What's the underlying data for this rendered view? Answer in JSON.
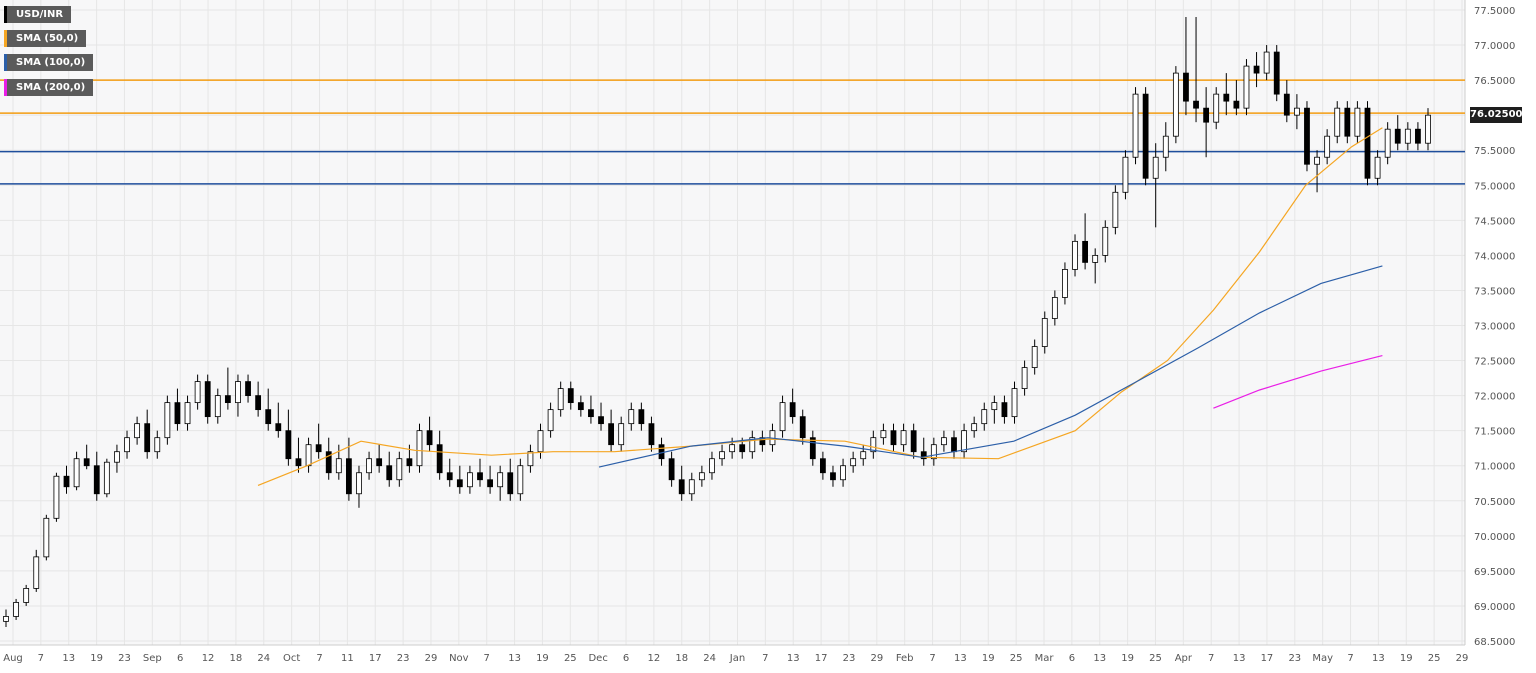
{
  "chart_data": {
    "type": "candlestick",
    "symbol": "USD/INR",
    "ylim": [
      68.5,
      77.5
    ],
    "y_ticks": [
      "77.5000",
      "77.0000",
      "76.5000",
      "76.0000",
      "75.5000",
      "75.0000",
      "74.5000",
      "74.0000",
      "73.5000",
      "73.0000",
      "72.5000",
      "72.0000",
      "71.5000",
      "71.0000",
      "70.5000",
      "70.0000",
      "69.5000",
      "69.0000",
      "68.5000"
    ],
    "x_ticks": [
      "Aug",
      "7",
      "13",
      "19",
      "23",
      "Sep",
      "6",
      "12",
      "18",
      "24",
      "Oct",
      "7",
      "11",
      "17",
      "23",
      "29",
      "Nov",
      "7",
      "13",
      "19",
      "25",
      "Dec",
      "6",
      "12",
      "18",
      "24",
      "Jan",
      "7",
      "13",
      "17",
      "23",
      "29",
      "Feb",
      "7",
      "13",
      "19",
      "25",
      "Mar",
      "6",
      "13",
      "19",
      "25",
      "Apr",
      "7",
      "13",
      "17",
      "23",
      "May",
      "7",
      "13",
      "19",
      "25",
      "29"
    ],
    "current_price_label": "76.02500",
    "current_price": 76.025,
    "horizontal_levels": [
      {
        "value": 76.5,
        "color": "#f39c12"
      },
      {
        "value": 76.03,
        "color": "#f39c12"
      },
      {
        "value": 75.48,
        "color": "#1f4e9c"
      },
      {
        "value": 75.02,
        "color": "#1f4e9c"
      }
    ],
    "legend": [
      {
        "label": "USD/INR",
        "color": "#000000"
      },
      {
        "label": "SMA (50,0)",
        "color": "#f5a623"
      },
      {
        "label": "SMA (100,0)",
        "color": "#2c5fa8"
      },
      {
        "label": "SMA (200,0)",
        "color": "#e91ee6"
      }
    ],
    "colors": {
      "up_fill": "#ffffff",
      "down_fill": "#000000",
      "candle_stroke": "#000000",
      "grid": "#e6e6e6",
      "background": "#f7f7f8"
    },
    "grid": true,
    "sma50": [
      [
        0.168,
        70.72
      ],
      [
        0.2,
        71.0
      ],
      [
        0.235,
        71.35
      ],
      [
        0.27,
        71.22
      ],
      [
        0.32,
        71.15
      ],
      [
        0.36,
        71.2
      ],
      [
        0.4,
        71.2
      ],
      [
        0.45,
        71.28
      ],
      [
        0.5,
        71.38
      ],
      [
        0.55,
        71.35
      ],
      [
        0.6,
        71.12
      ],
      [
        0.65,
        71.1
      ],
      [
        0.7,
        71.5
      ],
      [
        0.73,
        72.05
      ],
      [
        0.76,
        72.5
      ],
      [
        0.79,
        73.22
      ],
      [
        0.82,
        74.05
      ],
      [
        0.85,
        75.0
      ],
      [
        0.88,
        75.55
      ],
      [
        0.9,
        75.82
      ]
    ],
    "sma100": [
      [
        0.39,
        70.98
      ],
      [
        0.45,
        71.28
      ],
      [
        0.5,
        71.4
      ],
      [
        0.55,
        71.28
      ],
      [
        0.6,
        71.12
      ],
      [
        0.66,
        71.35
      ],
      [
        0.7,
        71.72
      ],
      [
        0.74,
        72.2
      ],
      [
        0.78,
        72.68
      ],
      [
        0.82,
        73.18
      ],
      [
        0.86,
        73.6
      ],
      [
        0.9,
        73.85
      ]
    ],
    "sma200": [
      [
        0.79,
        71.82
      ],
      [
        0.82,
        72.08
      ],
      [
        0.86,
        72.35
      ],
      [
        0.9,
        72.57
      ]
    ],
    "candles_note": "OHLC series (daily, ~215 bars) in #page-data.chart_data.ohlc",
    "ohlc": [
      [
        68.78,
        68.95,
        68.7,
        68.85
      ],
      [
        68.85,
        69.1,
        68.8,
        69.05
      ],
      [
        69.05,
        69.3,
        69.0,
        69.25
      ],
      [
        69.25,
        69.8,
        69.2,
        69.7
      ],
      [
        69.7,
        70.3,
        69.65,
        70.25
      ],
      [
        70.25,
        70.9,
        70.2,
        70.85
      ],
      [
        70.85,
        71.0,
        70.6,
        70.7
      ],
      [
        70.7,
        71.2,
        70.65,
        71.1
      ],
      [
        71.1,
        71.3,
        70.95,
        71.0
      ],
      [
        71.0,
        71.2,
        70.5,
        70.6
      ],
      [
        70.6,
        71.1,
        70.55,
        71.05
      ],
      [
        71.05,
        71.3,
        70.9,
        71.2
      ],
      [
        71.2,
        71.5,
        71.1,
        71.4
      ],
      [
        71.4,
        71.7,
        71.3,
        71.6
      ],
      [
        71.6,
        71.8,
        71.1,
        71.2
      ],
      [
        71.2,
        71.5,
        71.1,
        71.4
      ],
      [
        71.4,
        72.0,
        71.3,
        71.9
      ],
      [
        71.9,
        72.1,
        71.5,
        71.6
      ],
      [
        71.6,
        72.0,
        71.5,
        71.9
      ],
      [
        71.9,
        72.3,
        71.8,
        72.2
      ],
      [
        72.2,
        72.3,
        71.6,
        71.7
      ],
      [
        71.7,
        72.1,
        71.6,
        72.0
      ],
      [
        72.0,
        72.4,
        71.8,
        71.9
      ],
      [
        71.9,
        72.3,
        71.7,
        72.2
      ],
      [
        72.2,
        72.3,
        71.9,
        72.0
      ],
      [
        72.0,
        72.2,
        71.7,
        71.8
      ],
      [
        71.8,
        72.1,
        71.5,
        71.6
      ],
      [
        71.6,
        71.9,
        71.4,
        71.5
      ],
      [
        71.5,
        71.8,
        71.0,
        71.1
      ],
      [
        71.1,
        71.4,
        70.9,
        71.0
      ],
      [
        71.0,
        71.4,
        70.9,
        71.3
      ],
      [
        71.3,
        71.6,
        71.1,
        71.2
      ],
      [
        71.2,
        71.4,
        70.8,
        70.9
      ],
      [
        70.9,
        71.3,
        70.8,
        71.1
      ],
      [
        71.1,
        71.4,
        70.5,
        70.6
      ],
      [
        70.6,
        71.0,
        70.4,
        70.9
      ],
      [
        70.9,
        71.2,
        70.8,
        71.1
      ],
      [
        71.1,
        71.3,
        70.9,
        71.0
      ],
      [
        71.0,
        71.2,
        70.7,
        70.8
      ],
      [
        70.8,
        71.2,
        70.7,
        71.1
      ],
      [
        71.1,
        71.3,
        70.9,
        71.0
      ],
      [
        71.0,
        71.6,
        70.9,
        71.5
      ],
      [
        71.5,
        71.7,
        71.2,
        71.3
      ],
      [
        71.3,
        71.5,
        70.8,
        70.9
      ],
      [
        70.9,
        71.1,
        70.7,
        70.8
      ],
      [
        70.8,
        71.0,
        70.6,
        70.7
      ],
      [
        70.7,
        71.0,
        70.6,
        70.9
      ],
      [
        70.9,
        71.1,
        70.7,
        70.8
      ],
      [
        70.8,
        71.0,
        70.6,
        70.7
      ],
      [
        70.7,
        71.0,
        70.5,
        70.9
      ],
      [
        70.9,
        71.1,
        70.5,
        70.6
      ],
      [
        70.6,
        71.1,
        70.5,
        71.0
      ],
      [
        71.0,
        71.3,
        70.9,
        71.2
      ],
      [
        71.2,
        71.6,
        71.1,
        71.5
      ],
      [
        71.5,
        71.9,
        71.4,
        71.8
      ],
      [
        71.8,
        72.2,
        71.7,
        72.1
      ],
      [
        72.1,
        72.2,
        71.8,
        71.9
      ],
      [
        71.9,
        72.0,
        71.7,
        71.8
      ],
      [
        71.8,
        72.0,
        71.6,
        71.7
      ],
      [
        71.7,
        71.9,
        71.5,
        71.6
      ],
      [
        71.6,
        71.8,
        71.2,
        71.3
      ],
      [
        71.3,
        71.7,
        71.2,
        71.6
      ],
      [
        71.6,
        71.9,
        71.5,
        71.8
      ],
      [
        71.8,
        71.9,
        71.5,
        71.6
      ],
      [
        71.6,
        71.7,
        71.2,
        71.3
      ],
      [
        71.3,
        71.4,
        71.0,
        71.1
      ],
      [
        71.1,
        71.2,
        70.7,
        70.8
      ],
      [
        70.8,
        71.0,
        70.5,
        70.6
      ],
      [
        70.6,
        70.9,
        70.5,
        70.8
      ],
      [
        70.8,
        71.0,
        70.7,
        70.9
      ],
      [
        70.9,
        71.2,
        70.8,
        71.1
      ],
      [
        71.1,
        71.3,
        71.0,
        71.2
      ],
      [
        71.2,
        71.4,
        71.1,
        71.3
      ],
      [
        71.3,
        71.4,
        71.1,
        71.2
      ],
      [
        71.2,
        71.5,
        71.1,
        71.4
      ],
      [
        71.4,
        71.5,
        71.2,
        71.3
      ],
      [
        71.3,
        71.6,
        71.2,
        71.5
      ],
      [
        71.5,
        72.0,
        71.4,
        71.9
      ],
      [
        71.9,
        72.1,
        71.6,
        71.7
      ],
      [
        71.7,
        71.8,
        71.3,
        71.4
      ],
      [
        71.4,
        71.5,
        71.0,
        71.1
      ],
      [
        71.1,
        71.2,
        70.8,
        70.9
      ],
      [
        70.9,
        71.0,
        70.7,
        70.8
      ],
      [
        70.8,
        71.1,
        70.7,
        71.0
      ],
      [
        71.0,
        71.2,
        70.9,
        71.1
      ],
      [
        71.1,
        71.3,
        71.0,
        71.2
      ],
      [
        71.2,
        71.5,
        71.1,
        71.4
      ],
      [
        71.4,
        71.6,
        71.3,
        71.5
      ],
      [
        71.5,
        71.6,
        71.2,
        71.3
      ],
      [
        71.3,
        71.6,
        71.2,
        71.5
      ],
      [
        71.5,
        71.6,
        71.1,
        71.2
      ],
      [
        71.2,
        71.4,
        71.0,
        71.1
      ],
      [
        71.1,
        71.4,
        71.0,
        71.3
      ],
      [
        71.3,
        71.5,
        71.2,
        71.4
      ],
      [
        71.4,
        71.5,
        71.1,
        71.2
      ],
      [
        71.2,
        71.6,
        71.1,
        71.5
      ],
      [
        71.5,
        71.7,
        71.4,
        71.6
      ],
      [
        71.6,
        71.9,
        71.5,
        71.8
      ],
      [
        71.8,
        72.0,
        71.6,
        71.9
      ],
      [
        71.9,
        72.0,
        71.6,
        71.7
      ],
      [
        71.7,
        72.2,
        71.6,
        72.1
      ],
      [
        72.1,
        72.5,
        72.0,
        72.4
      ],
      [
        72.4,
        72.8,
        72.3,
        72.7
      ],
      [
        72.7,
        73.2,
        72.6,
        73.1
      ],
      [
        73.1,
        73.5,
        73.0,
        73.4
      ],
      [
        73.4,
        73.9,
        73.3,
        73.8
      ],
      [
        73.8,
        74.3,
        73.7,
        74.2
      ],
      [
        74.2,
        74.6,
        73.8,
        73.9
      ],
      [
        73.9,
        74.1,
        73.6,
        74.0
      ],
      [
        74.0,
        74.5,
        73.9,
        74.4
      ],
      [
        74.4,
        75.0,
        74.3,
        74.9
      ],
      [
        74.9,
        75.5,
        74.8,
        75.4
      ],
      [
        75.4,
        76.4,
        75.3,
        76.3
      ],
      [
        76.3,
        76.4,
        75.0,
        75.1
      ],
      [
        75.1,
        75.6,
        74.4,
        75.4
      ],
      [
        75.4,
        75.9,
        75.2,
        75.7
      ],
      [
        75.7,
        76.7,
        75.6,
        76.6
      ],
      [
        76.6,
        77.4,
        76.0,
        76.2
      ],
      [
        76.2,
        77.4,
        75.9,
        76.1
      ],
      [
        76.1,
        76.4,
        75.4,
        75.9
      ],
      [
        75.9,
        76.4,
        75.8,
        76.3
      ],
      [
        76.3,
        76.6,
        76.0,
        76.2
      ],
      [
        76.2,
        76.5,
        76.0,
        76.1
      ],
      [
        76.1,
        76.8,
        76.0,
        76.7
      ],
      [
        76.7,
        76.9,
        76.4,
        76.6
      ],
      [
        76.6,
        77.0,
        76.5,
        76.9
      ],
      [
        76.9,
        77.0,
        76.2,
        76.3
      ],
      [
        76.3,
        76.5,
        75.9,
        76.0
      ],
      [
        76.0,
        76.3,
        75.8,
        76.1
      ],
      [
        76.1,
        76.2,
        75.2,
        75.3
      ],
      [
        75.3,
        75.5,
        74.9,
        75.4
      ],
      [
        75.4,
        75.8,
        75.3,
        75.7
      ],
      [
        75.7,
        76.2,
        75.6,
        76.1
      ],
      [
        76.1,
        76.2,
        75.6,
        75.7
      ],
      [
        75.7,
        76.2,
        75.6,
        76.1
      ],
      [
        76.1,
        76.2,
        75.0,
        75.1
      ],
      [
        75.1,
        75.5,
        75.0,
        75.4
      ],
      [
        75.4,
        75.9,
        75.3,
        75.8
      ],
      [
        75.8,
        76.0,
        75.5,
        75.6
      ],
      [
        75.6,
        75.9,
        75.5,
        75.8
      ],
      [
        75.8,
        75.9,
        75.5,
        75.6
      ],
      [
        75.6,
        76.1,
        75.5,
        76.0
      ]
    ]
  }
}
